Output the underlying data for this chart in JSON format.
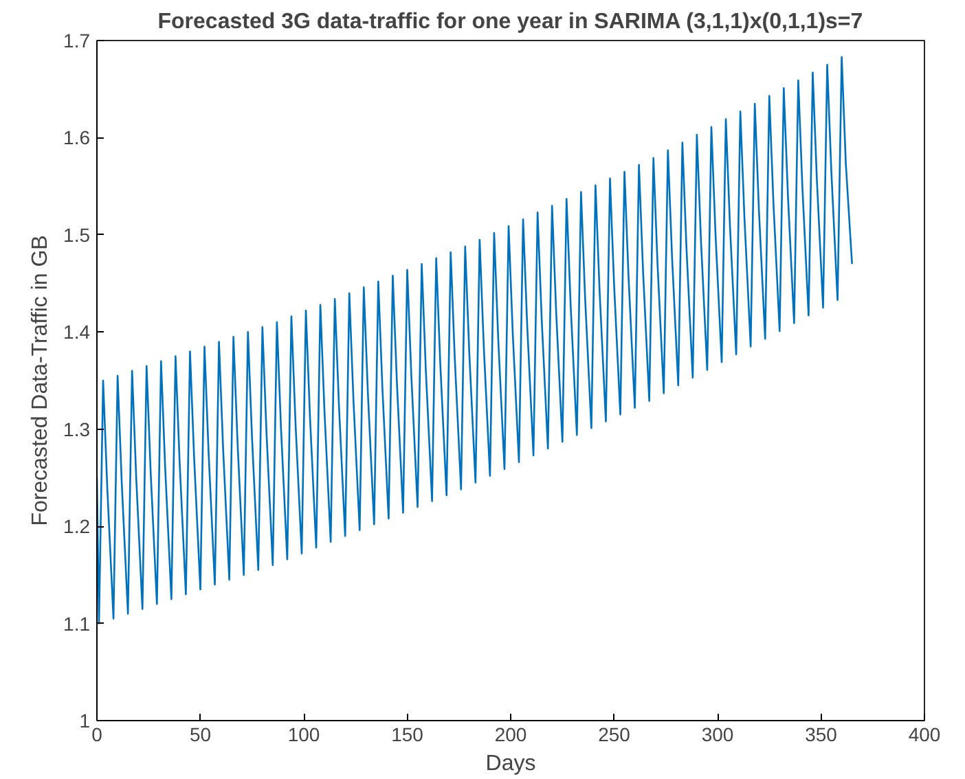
{
  "chart_data": {
    "type": "line",
    "title": "Forecasted 3G data-traffic for one year in SARIMA (3,1,1)x(0,1,1)s=7",
    "xlabel": "Days",
    "ylabel": "Forecasted Data-Traffic in GB",
    "x": [
      0,
      1,
      3,
      5,
      8,
      10,
      12,
      15,
      17,
      19,
      22,
      24,
      26,
      29,
      31,
      33,
      36,
      38,
      40,
      43,
      45,
      47,
      50,
      52,
      54,
      57,
      59,
      61,
      64,
      66,
      68,
      71,
      73,
      75,
      78,
      80,
      82,
      85,
      87,
      89,
      92,
      94,
      96,
      99,
      101,
      103,
      106,
      108,
      110,
      113,
      115,
      117,
      120,
      122,
      124,
      127,
      129,
      131,
      134,
      136,
      138,
      141,
      143,
      145,
      148,
      150,
      152,
      155,
      157,
      159,
      162,
      164,
      166,
      169,
      171,
      173,
      176,
      178,
      180,
      183,
      185,
      187,
      190,
      192,
      194,
      197,
      199,
      201,
      204,
      206,
      208,
      211,
      213,
      215,
      218,
      220,
      222,
      225,
      227,
      229,
      232,
      234,
      236,
      239,
      241,
      243,
      246,
      248,
      250,
      253,
      255,
      257,
      260,
      262,
      264,
      267,
      269,
      271,
      274,
      276,
      278,
      281,
      283,
      285,
      288,
      290,
      292,
      295,
      297,
      299,
      302,
      304,
      306,
      309,
      311,
      313,
      316,
      318,
      320,
      323,
      325,
      327,
      330,
      332,
      334,
      337,
      339,
      341,
      344,
      346,
      348,
      351,
      353,
      355,
      358,
      360,
      362,
      365
    ],
    "series": [
      {
        "color": "#0072bd",
        "values": [
          1.25,
          1.1,
          1.35,
          1.24,
          1.105,
          1.355,
          1.245,
          1.11,
          1.36,
          1.25,
          1.115,
          1.365,
          1.255,
          1.12,
          1.37,
          1.26,
          1.125,
          1.375,
          1.265,
          1.13,
          1.38,
          1.27,
          1.135,
          1.385,
          1.275,
          1.14,
          1.39,
          1.28,
          1.145,
          1.395,
          1.285,
          1.15,
          1.4,
          1.29,
          1.155,
          1.405,
          1.295,
          1.16,
          1.41,
          1.3,
          1.166,
          1.416,
          1.306,
          1.172,
          1.422,
          1.312,
          1.178,
          1.428,
          1.318,
          1.184,
          1.434,
          1.324,
          1.19,
          1.44,
          1.33,
          1.196,
          1.446,
          1.336,
          1.202,
          1.452,
          1.342,
          1.208,
          1.458,
          1.348,
          1.214,
          1.464,
          1.354,
          1.22,
          1.47,
          1.36,
          1.226,
          1.476,
          1.366,
          1.232,
          1.482,
          1.372,
          1.238,
          1.488,
          1.378,
          1.245,
          1.495,
          1.385,
          1.252,
          1.502,
          1.392,
          1.259,
          1.509,
          1.399,
          1.266,
          1.516,
          1.406,
          1.273,
          1.523,
          1.413,
          1.28,
          1.53,
          1.42,
          1.287,
          1.537,
          1.427,
          1.294,
          1.544,
          1.434,
          1.301,
          1.551,
          1.441,
          1.308,
          1.558,
          1.448,
          1.315,
          1.565,
          1.455,
          1.322,
          1.572,
          1.462,
          1.329,
          1.579,
          1.469,
          1.337,
          1.587,
          1.477,
          1.345,
          1.595,
          1.485,
          1.353,
          1.603,
          1.493,
          1.361,
          1.611,
          1.501,
          1.369,
          1.619,
          1.509,
          1.377,
          1.627,
          1.517,
          1.385,
          1.635,
          1.525,
          1.393,
          1.643,
          1.533,
          1.401,
          1.651,
          1.541,
          1.409,
          1.659,
          1.549,
          1.417,
          1.667,
          1.557,
          1.425,
          1.675,
          1.565,
          1.433,
          1.683,
          1.573,
          1.47
        ]
      }
    ],
    "xlim": [
      0,
      400
    ],
    "xticks": [
      0,
      50,
      100,
      150,
      200,
      250,
      300,
      350,
      400
    ],
    "ylim": [
      1,
      1.7
    ],
    "yticks": [
      1,
      1.1,
      1.2,
      1.3,
      1.4,
      1.5,
      1.6,
      1.7
    ],
    "grid": false,
    "line_style": "solid",
    "marker": "none"
  }
}
